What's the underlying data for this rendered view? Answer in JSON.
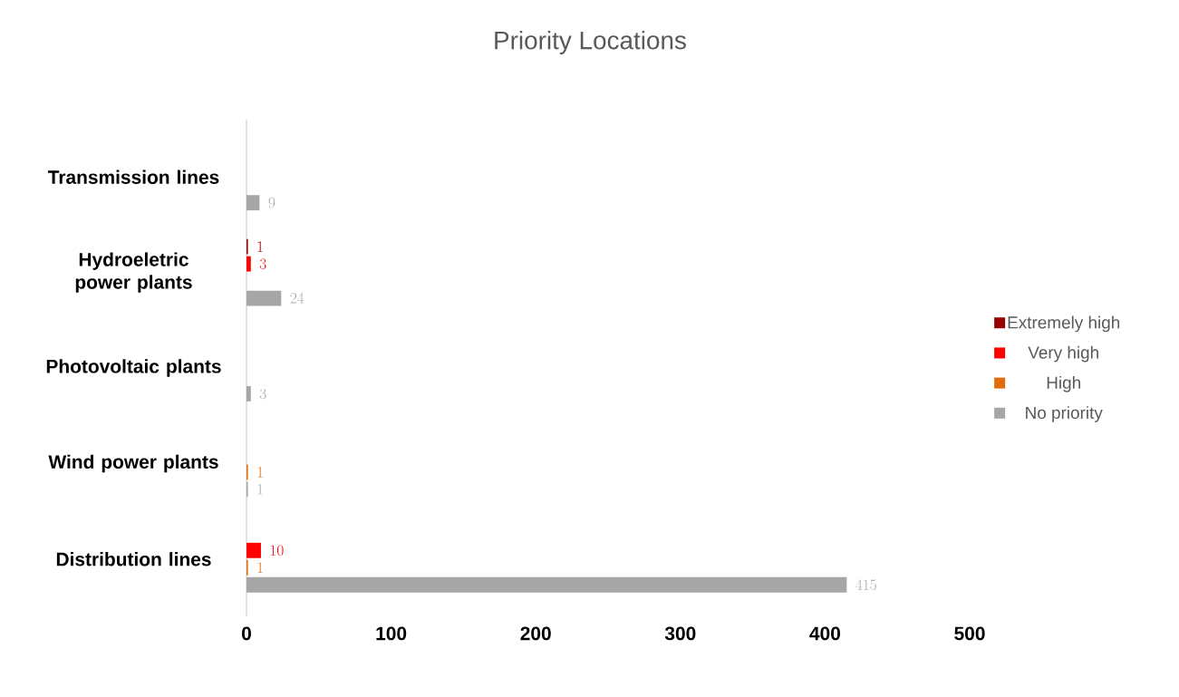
{
  "chart_data": {
    "type": "bar",
    "orientation": "horizontal",
    "title": "Priority Locations",
    "categories": [
      "Transmission lines",
      "Hydroeletric power plants",
      "Photovoltaic plants",
      "Wind power plants",
      "Distribution lines"
    ],
    "series": [
      {
        "name": "Extremely high",
        "color": "#990000",
        "values": [
          null,
          1,
          null,
          null,
          null
        ]
      },
      {
        "name": "Very high",
        "color": "#ff0000",
        "values": [
          null,
          3,
          null,
          null,
          10
        ]
      },
      {
        "name": "High",
        "color": "#e36c09",
        "values": [
          null,
          null,
          null,
          1,
          1
        ]
      },
      {
        "name": "No priority",
        "color": "#a6a6a6",
        "values": [
          9,
          24,
          3,
          1,
          415
        ]
      }
    ],
    "xlim": [
      0,
      500
    ],
    "xticks": [
      0,
      100,
      200,
      300,
      400,
      500
    ],
    "data_labels": true,
    "legend": "right",
    "grid": false
  }
}
